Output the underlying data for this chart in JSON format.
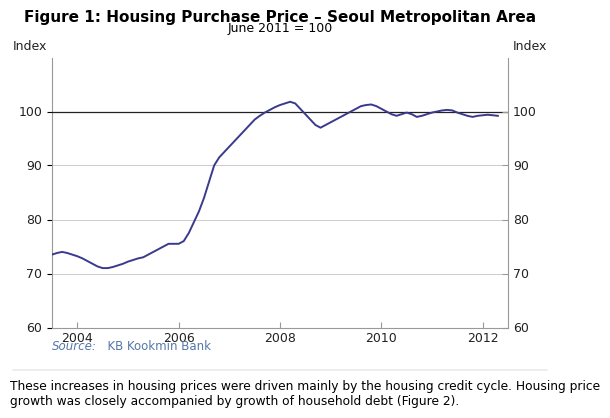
{
  "title": "Figure 1: Housing Purchase Price – Seoul Metropolitan Area",
  "subtitle": "June 2011 = 100",
  "ylabel_left": "Index",
  "ylabel_right": "Index",
  "source_label": "Source:",
  "source_value": "  KB Kookmin Bank",
  "caption": "These increases in housing prices were driven mainly by the housing credit cycle. Housing price\ngrowth was closely accompanied by growth of household debt (Figure 2).",
  "line_color": "#3a3a8c",
  "line_width": 1.4,
  "ylim": [
    60,
    110
  ],
  "yticks": [
    60,
    70,
    80,
    90,
    100
  ],
  "xlim_start": 2003.5,
  "xlim_end": 2012.5,
  "xticks": [
    2004,
    2006,
    2008,
    2010,
    2012
  ],
  "hline_y": 100,
  "hline_color": "#222222",
  "background_color": "#ffffff",
  "source_color": "#5577aa",
  "grid_color": "#cccccc",
  "spine_color": "#999999",
  "data": {
    "x": [
      2003.5,
      2003.6,
      2003.7,
      2003.8,
      2003.9,
      2004.0,
      2004.1,
      2004.2,
      2004.3,
      2004.4,
      2004.5,
      2004.6,
      2004.7,
      2004.8,
      2004.9,
      2005.0,
      2005.1,
      2005.2,
      2005.3,
      2005.4,
      2005.5,
      2005.6,
      2005.7,
      2005.8,
      2005.9,
      2006.0,
      2006.1,
      2006.2,
      2006.3,
      2006.4,
      2006.5,
      2006.6,
      2006.7,
      2006.8,
      2006.9,
      2007.0,
      2007.1,
      2007.2,
      2007.3,
      2007.4,
      2007.5,
      2007.6,
      2007.7,
      2007.8,
      2007.9,
      2008.0,
      2008.1,
      2008.2,
      2008.3,
      2008.4,
      2008.5,
      2008.6,
      2008.7,
      2008.8,
      2008.9,
      2009.0,
      2009.1,
      2009.2,
      2009.3,
      2009.4,
      2009.5,
      2009.6,
      2009.7,
      2009.8,
      2009.9,
      2010.0,
      2010.1,
      2010.2,
      2010.3,
      2010.4,
      2010.5,
      2010.6,
      2010.7,
      2010.8,
      2010.9,
      2011.0,
      2011.1,
      2011.2,
      2011.3,
      2011.4,
      2011.5,
      2011.6,
      2011.7,
      2011.8,
      2011.9,
      2012.0,
      2012.1,
      2012.2,
      2012.3
    ],
    "y": [
      73.5,
      73.8,
      74.0,
      73.8,
      73.5,
      73.2,
      72.8,
      72.3,
      71.8,
      71.3,
      71.0,
      71.0,
      71.2,
      71.5,
      71.8,
      72.2,
      72.5,
      72.8,
      73.0,
      73.5,
      74.0,
      74.5,
      75.0,
      75.5,
      75.5,
      75.5,
      76.0,
      77.5,
      79.5,
      81.5,
      84.0,
      87.0,
      90.0,
      91.5,
      92.5,
      93.5,
      94.5,
      95.5,
      96.5,
      97.5,
      98.5,
      99.2,
      99.8,
      100.3,
      100.8,
      101.2,
      101.5,
      101.8,
      101.5,
      100.5,
      99.5,
      98.5,
      97.5,
      97.0,
      97.5,
      98.0,
      98.5,
      99.0,
      99.5,
      100.0,
      100.5,
      101.0,
      101.2,
      101.3,
      101.0,
      100.5,
      100.0,
      99.5,
      99.2,
      99.5,
      99.8,
      99.5,
      99.0,
      99.2,
      99.5,
      99.8,
      100.0,
      100.2,
      100.3,
      100.2,
      99.8,
      99.5,
      99.2,
      99.0,
      99.2,
      99.3,
      99.4,
      99.3,
      99.2
    ]
  }
}
